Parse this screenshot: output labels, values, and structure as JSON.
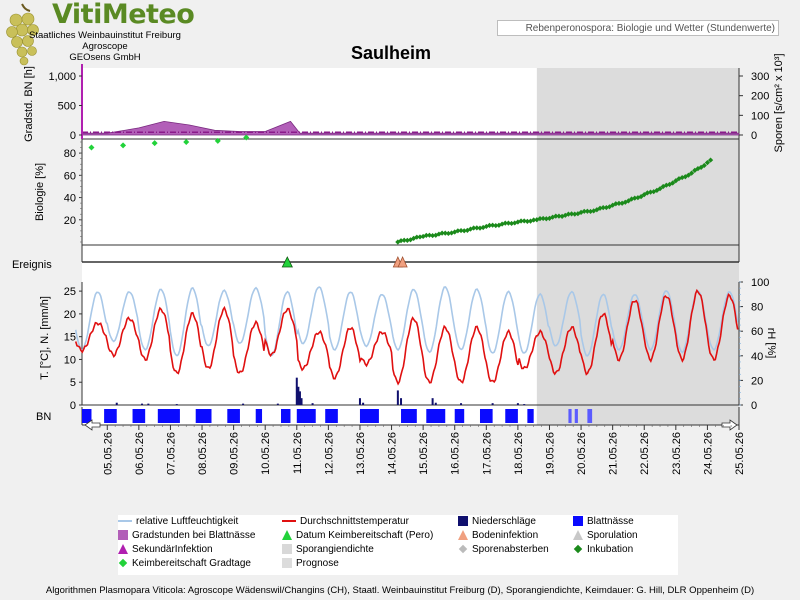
{
  "logo": {
    "title": "VitiMeteo",
    "line1": "Staatliches Weinbauinstitut Freiburg",
    "line2": "Agroscope",
    "line3": "GEOsens GmbH"
  },
  "header": {
    "subtitle": "Rebenperonospora: Biologie und Wetter (Stundenwerte)"
  },
  "page_title": "Saulheim",
  "footer": "Algorithmen Plasmopara Viticola: Agroscope Wädenswil/Changins (CH), Staatl. Weinbauinstitut Freiburg (D), Sporangiendichte, Keimdauer: G. Hill, DLR Oppenheim (D)",
  "colors": {
    "humidity": "#a9c8e8",
    "temperature": "#e01010",
    "precip": "#10106e",
    "leaf_wet": "#0a0aff",
    "gradstunden": "#b25fb8",
    "biology": "#1b8a1b",
    "keim": "#22d23a",
    "prognose": "#dcdcdc"
  },
  "legend": [
    {
      "id": "rh",
      "label": "relative Luftfeuchtigkeit",
      "symbol": "line",
      "color": "#a9c8e8"
    },
    {
      "id": "temp",
      "label": "Durchschnittstemperatur",
      "symbol": "line",
      "color": "#e01010"
    },
    {
      "id": "precip",
      "label": "Niederschläge",
      "symbol": "square",
      "color": "#10106e"
    },
    {
      "id": "bn",
      "label": "Blattnässe",
      "symbol": "square",
      "color": "#0a0aff"
    },
    {
      "id": "grad",
      "label": "Gradstunden bei Blattnässe",
      "symbol": "square",
      "color": "#b25fb8"
    },
    {
      "id": "keimdate",
      "label": "Datum Keimbereitschaft (Pero)",
      "symbol": "triangle",
      "color": "#22d23a"
    },
    {
      "id": "boden",
      "label": "Bodeninfektion",
      "symbol": "triangle",
      "color": "#f0a080"
    },
    {
      "id": "spor",
      "label": "Sporulation",
      "symbol": "triangle",
      "color": "#c8c8c8"
    },
    {
      "id": "sek",
      "label": "SekundärInfektion",
      "symbol": "triangle",
      "color": "#b020b0"
    },
    {
      "id": "sdens",
      "label": "Sporangiendichte",
      "symbol": "square",
      "color": "#d8d8d8"
    },
    {
      "id": "sabs",
      "label": "Sporenabsterben",
      "symbol": "diamond",
      "color": "#bbbbbb"
    },
    {
      "id": "inku",
      "label": "Inkubation",
      "symbol": "diamond",
      "color": "#1b8a1b"
    },
    {
      "id": "keimtage",
      "label": "Keimbereitschaft Gradtage",
      "symbol": "diamond",
      "color": "#22d23a"
    },
    {
      "id": "prog",
      "label": "Prognose",
      "symbol": "square",
      "color": "#dcdcdc"
    }
  ],
  "chart_data": {
    "type": "line",
    "x_dates": [
      "05.05.26",
      "06.05.26",
      "07.05.26",
      "08.05.26",
      "09.05.26",
      "10.05.26",
      "11.05.26",
      "12.05.26",
      "13.05.26",
      "14.05.26",
      "15.05.26",
      "16.05.26",
      "17.05.26",
      "18.05.26",
      "19.05.26",
      "20.05.26",
      "21.05.26",
      "22.05.26",
      "23.05.26",
      "24.05.26",
      "25.05.26"
    ],
    "x_range_days": [
      4.2,
      25.0
    ],
    "prognose_start_day": 18.6,
    "panels": {
      "gradstunden": {
        "ylabel_left": "Gradstd. BN [h]",
        "ylabel_right": "Sporen [s/cm² x 10³]",
        "yticks_left": [
          "1,000",
          "500",
          "0"
        ],
        "yticks_right": [
          "300",
          "200",
          "100",
          "0"
        ],
        "ylim": [
          0,
          1000
        ],
        "points": [
          [
            4.2,
            30
          ],
          [
            5.0,
            30
          ],
          [
            6.0,
            120
          ],
          [
            6.8,
            230
          ],
          [
            7.6,
            170
          ],
          [
            8.4,
            80
          ],
          [
            9.2,
            60
          ],
          [
            10.0,
            60
          ],
          [
            10.8,
            230
          ],
          [
            11.1,
            30
          ],
          [
            25.0,
            30
          ]
        ]
      },
      "biologie": {
        "ylabel": "Biologie [%]",
        "yticks": [
          "80",
          "60",
          "40",
          "20"
        ],
        "ylim": [
          0,
          90
        ],
        "keimbereitschaft_gradtage": [
          [
            4.5,
            85
          ],
          [
            5.5,
            87
          ],
          [
            6.5,
            89
          ],
          [
            7.5,
            90
          ],
          [
            8.5,
            91
          ],
          [
            9.4,
            94
          ]
        ],
        "inkubation": [
          [
            14.2,
            0
          ],
          [
            15.0,
            5
          ],
          [
            16.0,
            9
          ],
          [
            17.0,
            14
          ],
          [
            18.0,
            18
          ],
          [
            18.6,
            20
          ],
          [
            19.5,
            24
          ],
          [
            20.5,
            29
          ],
          [
            21.5,
            37
          ],
          [
            22.5,
            48
          ],
          [
            23.5,
            62
          ],
          [
            24.2,
            75
          ]
        ]
      },
      "ereignis": {
        "label": "Ereignis",
        "keimdatum_day": 10.7,
        "bodeninfektion_days": [
          14.2,
          14.35
        ]
      },
      "wetter": {
        "ylabel_left": "T. [°C], N. [mm/h]",
        "ylabel_right": "rH [%]",
        "yticks_left": [
          "25",
          "20",
          "15",
          "10",
          "5",
          "0"
        ],
        "yticks_right": [
          "100",
          "80",
          "60",
          "40",
          "20",
          "0"
        ],
        "temp_ylim": [
          0,
          27
        ],
        "rh_ylim": [
          0,
          100
        ],
        "temperature_daily": [
          {
            "day": 4.5,
            "min": 12,
            "max": 18
          },
          {
            "day": 5.5,
            "min": 11,
            "max": 19
          },
          {
            "day": 6.5,
            "min": 10,
            "max": 21
          },
          {
            "day": 7.5,
            "min": 7,
            "max": 20
          },
          {
            "day": 8.5,
            "min": 8,
            "max": 21
          },
          {
            "day": 9.5,
            "min": 7,
            "max": 18
          },
          {
            "day": 10.5,
            "min": 11,
            "max": 21
          },
          {
            "day": 11.5,
            "min": 8,
            "max": 16
          },
          {
            "day": 12.5,
            "min": 6,
            "max": 17
          },
          {
            "day": 13.5,
            "min": 9,
            "max": 16
          },
          {
            "day": 14.5,
            "min": 5,
            "max": 19
          },
          {
            "day": 15.5,
            "min": 5,
            "max": 17
          },
          {
            "day": 16.5,
            "min": 5,
            "max": 17
          },
          {
            "day": 17.5,
            "min": 5,
            "max": 16
          },
          {
            "day": 18.5,
            "min": 8,
            "max": 16
          },
          {
            "day": 19.5,
            "min": 7,
            "max": 17
          },
          {
            "day": 20.5,
            "min": 7,
            "max": 20
          },
          {
            "day": 21.5,
            "min": 10,
            "max": 23
          },
          {
            "day": 22.5,
            "min": 10,
            "max": 24
          },
          {
            "day": 23.5,
            "min": 10,
            "max": 25
          },
          {
            "day": 24.5,
            "min": 10,
            "max": 24
          }
        ],
        "rh_daily": [
          {
            "day": 4.5,
            "min": 45,
            "max": 92
          },
          {
            "day": 5.5,
            "min": 52,
            "max": 92
          },
          {
            "day": 6.5,
            "min": 45,
            "max": 94
          },
          {
            "day": 7.5,
            "min": 40,
            "max": 95
          },
          {
            "day": 8.5,
            "min": 48,
            "max": 93
          },
          {
            "day": 9.5,
            "min": 50,
            "max": 95
          },
          {
            "day": 10.5,
            "min": 40,
            "max": 92
          },
          {
            "day": 11.5,
            "min": 50,
            "max": 96
          },
          {
            "day": 12.5,
            "min": 45,
            "max": 92
          },
          {
            "day": 13.5,
            "min": 48,
            "max": 90
          },
          {
            "day": 14.5,
            "min": 45,
            "max": 94
          },
          {
            "day": 15.5,
            "min": 43,
            "max": 96
          },
          {
            "day": 16.5,
            "min": 45,
            "max": 94
          },
          {
            "day": 17.5,
            "min": 42,
            "max": 92
          },
          {
            "day": 18.5,
            "min": 42,
            "max": 90
          },
          {
            "day": 19.5,
            "min": 48,
            "max": 92
          },
          {
            "day": 20.5,
            "min": 40,
            "max": 90
          },
          {
            "day": 21.5,
            "min": 45,
            "max": 90
          },
          {
            "day": 22.5,
            "min": 45,
            "max": 93
          },
          {
            "day": 23.5,
            "min": 43,
            "max": 93
          },
          {
            "day": 24.5,
            "min": 45,
            "max": 92
          }
        ],
        "precipitation_mm_h": [
          [
            5.3,
            0.5
          ],
          [
            6.1,
            0.3
          ],
          [
            6.3,
            0.3
          ],
          [
            7.2,
            0.2
          ],
          [
            9.3,
            0.3
          ],
          [
            10.4,
            0.3
          ],
          [
            11.0,
            6.0
          ],
          [
            11.05,
            4.0
          ],
          [
            11.1,
            3.0
          ],
          [
            11.15,
            1.5
          ],
          [
            11.5,
            0.4
          ],
          [
            13.0,
            1.5
          ],
          [
            13.1,
            0.5
          ],
          [
            14.2,
            3.2
          ],
          [
            14.3,
            1.5
          ],
          [
            15.3,
            1.5
          ],
          [
            15.4,
            0.5
          ],
          [
            16.2,
            0.4
          ],
          [
            17.2,
            0.4
          ],
          [
            18.0,
            0.4
          ],
          [
            18.2,
            0.2
          ]
        ]
      },
      "blattnaesse": {
        "label": "BN",
        "wet_intervals": [
          [
            4.2,
            4.5
          ],
          [
            4.9,
            5.3
          ],
          [
            5.8,
            6.2
          ],
          [
            6.6,
            7.3
          ],
          [
            7.8,
            8.3
          ],
          [
            8.8,
            9.2
          ],
          [
            9.7,
            9.9
          ],
          [
            10.5,
            10.8
          ],
          [
            11.0,
            11.6
          ],
          [
            11.9,
            12.3
          ],
          [
            13.0,
            13.6
          ],
          [
            14.3,
            14.8
          ],
          [
            15.1,
            15.7
          ],
          [
            16.0,
            16.3
          ],
          [
            16.8,
            17.2
          ],
          [
            17.6,
            18.0
          ],
          [
            18.3,
            18.5
          ],
          [
            19.6,
            19.7
          ],
          [
            19.8,
            19.9
          ],
          [
            20.2,
            20.35
          ]
        ]
      }
    }
  }
}
